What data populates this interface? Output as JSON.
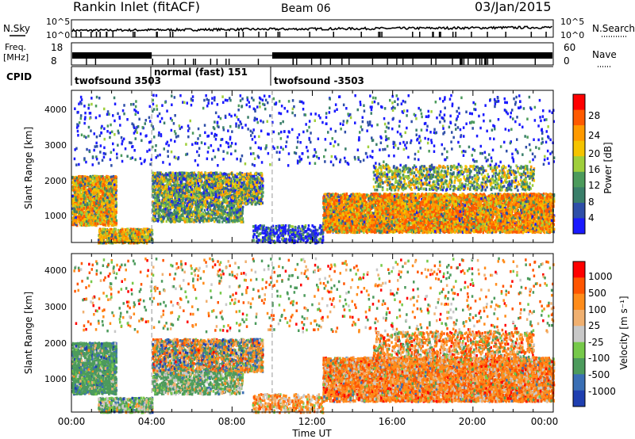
{
  "header": {
    "station_title": "Rankin Inlet (fitACF)",
    "beam_label": "Beam 06",
    "date_label": "03/Jan/2015"
  },
  "noise_panel": {
    "left_label": "N.Sky",
    "right_label": "N.Search",
    "left_ticks": [
      "10^5",
      "10^0"
    ],
    "right_ticks": [
      "10^5",
      "10^0"
    ]
  },
  "freq_panel": {
    "left_label_line1": "Freq.",
    "left_label_line2": "[MHz]",
    "right_label": "Nave",
    "left_ticks": [
      "18",
      "8"
    ],
    "right_ticks": [
      "60",
      "0"
    ]
  },
  "cpid_panel": {
    "label": "CPID",
    "segments": [
      "twofsound 3503",
      "normal (fast) 151",
      "twofsound -3503"
    ]
  },
  "colors": {
    "power_scale": [
      "#1a1aff",
      "#2f4fa8",
      "#3a7f6a",
      "#4c9b5c",
      "#9fcf3b",
      "#f5c400",
      "#ff9a00",
      "#ff5a00",
      "#ff0000"
    ],
    "velocity_scale": [
      "#ff0000",
      "#ff5500",
      "#ff8c1a",
      "#f0b070",
      "#c8c8c8",
      "#76c94a",
      "#4c9b5c",
      "#3a6fb5",
      "#1f3fb0"
    ]
  },
  "chart_data": [
    {
      "type": "heatmap",
      "title": "",
      "quantity": "Power",
      "xlabel": "",
      "ylabel": "Slant Range [km]",
      "x_ticks": [
        "00:00",
        "04:00",
        "08:00",
        "12:00",
        "16:00",
        "20:00",
        "00:00"
      ],
      "y_ticks": [
        "1000",
        "2000",
        "3000",
        "4000"
      ],
      "x_range_hours": [
        0,
        24
      ],
      "y_range_km": [
        180,
        4500
      ],
      "colorbar": {
        "label": "Power [dB]",
        "ticks": [
          "4",
          "8",
          "12",
          "16",
          "20",
          "24",
          "28"
        ],
        "range": [
          0,
          32
        ]
      }
    },
    {
      "type": "heatmap",
      "title": "",
      "quantity": "Velocity",
      "xlabel": "Time UT",
      "ylabel": "Slant Range [km]",
      "x_ticks": [
        "00:00",
        "04:00",
        "08:00",
        "12:00",
        "16:00",
        "20:00",
        "00:00"
      ],
      "y_ticks": [
        "1000",
        "2000",
        "3000",
        "4000"
      ],
      "x_range_hours": [
        0,
        24
      ],
      "y_range_km": [
        180,
        4500
      ],
      "colorbar": {
        "label": "Velocity [m s⁻¹]",
        "ticks": [
          "1000",
          "500",
          "100",
          "25",
          "-25",
          "-100",
          "-500",
          "-1000"
        ]
      }
    }
  ]
}
